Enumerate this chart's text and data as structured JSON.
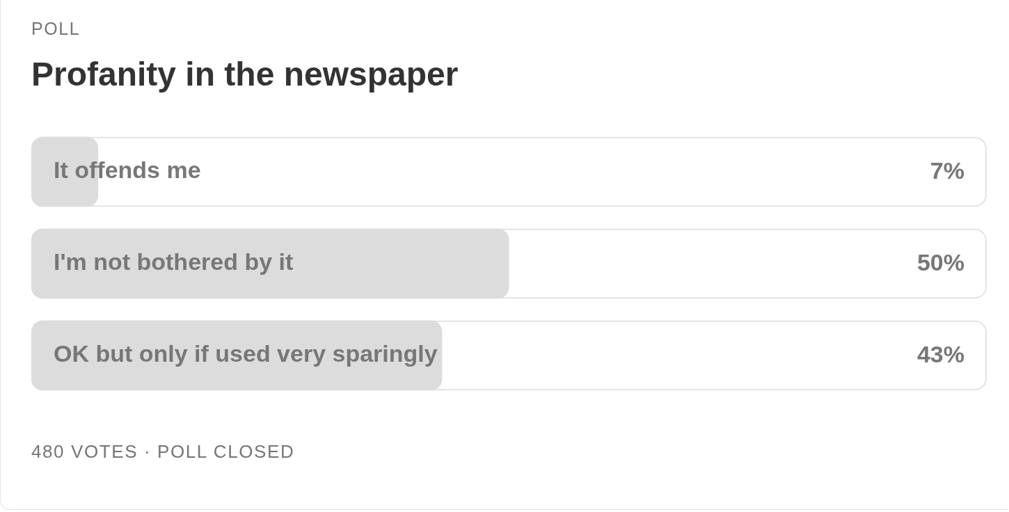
{
  "chart_data": {
    "type": "bar",
    "orientation": "horizontal",
    "title": "Profanity in the newspaper",
    "annotations": [
      "POLL",
      "480 VOTES · POLL CLOSED"
    ],
    "categories": [
      "It offends me",
      "I'm not bothered by it",
      "OK but only if used very sparingly"
    ],
    "values": [
      7,
      50,
      43
    ],
    "value_labels": [
      "7%",
      "50%",
      "43%"
    ],
    "color": "#dcdcdc",
    "xlim": [
      0,
      100
    ],
    "tick_labels": "y",
    "grid": false,
    "legend": false
  }
}
